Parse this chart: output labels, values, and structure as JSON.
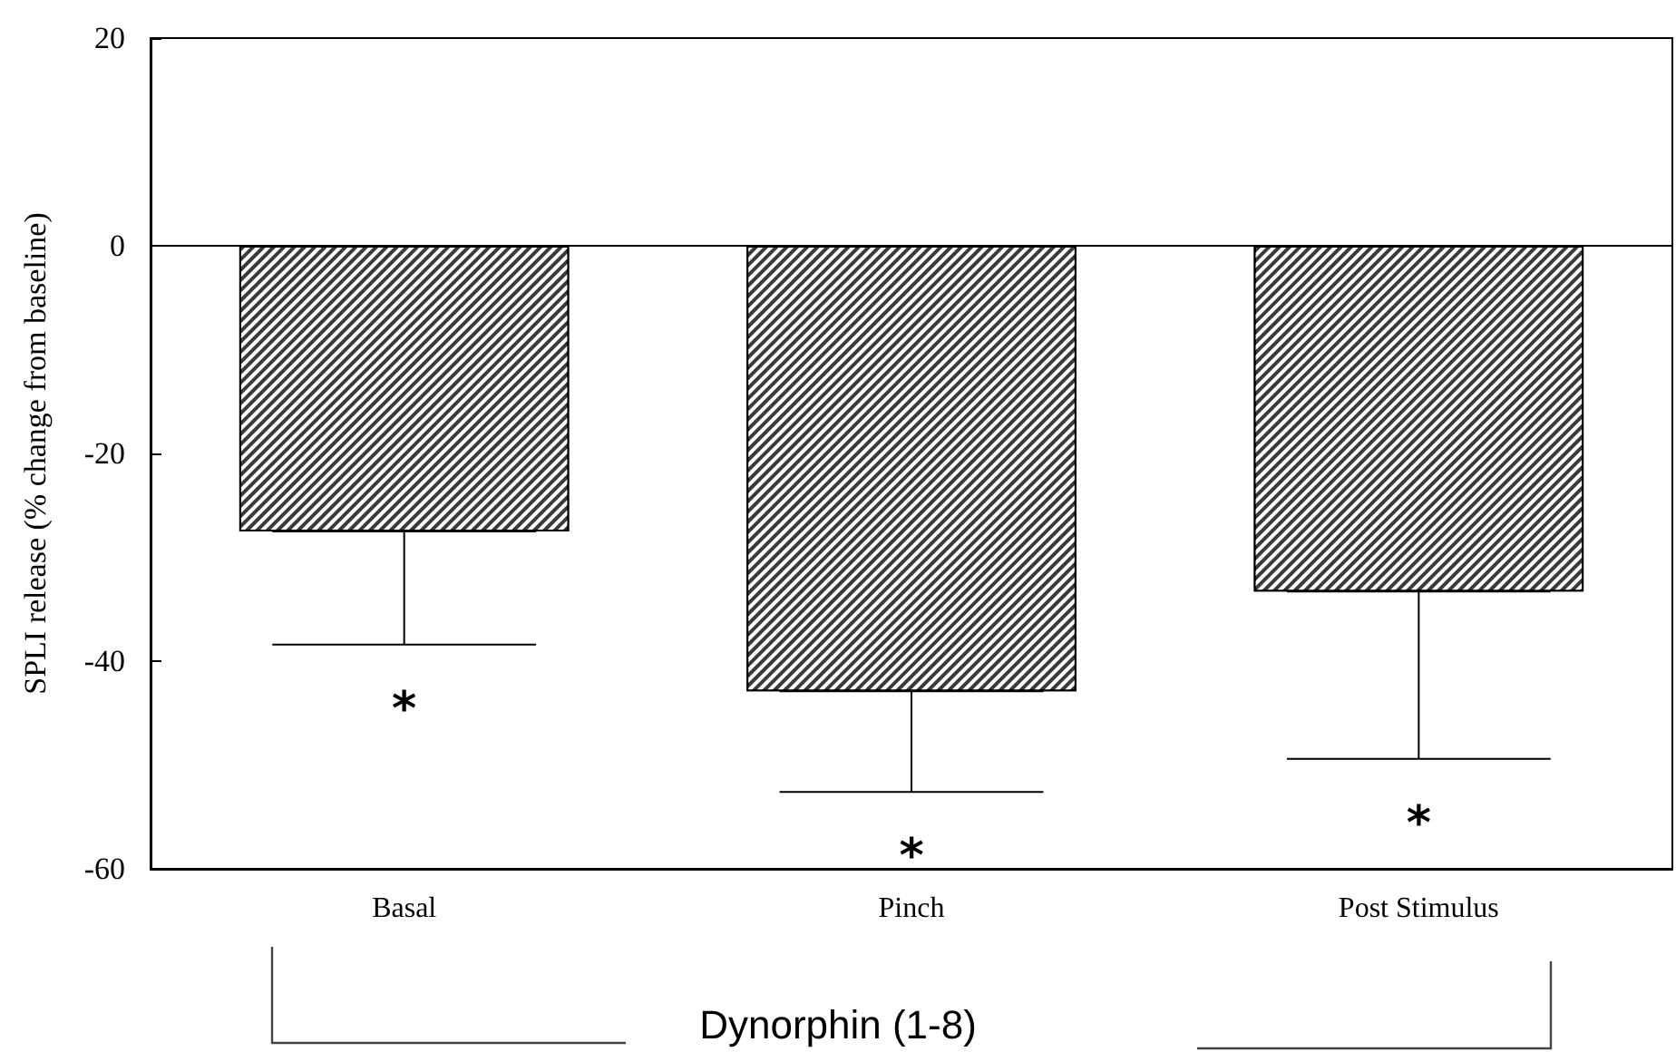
{
  "chart_data": {
    "type": "bar",
    "ylabel": "SPLI release (% change from baseline)",
    "categories": [
      "Basal",
      "Pinch",
      "Post Stimulus"
    ],
    "values": [
      -27.5,
      -42.9,
      -33.3
    ],
    "errors": [
      [
        -38.4,
        -27.5
      ],
      [
        -52.6,
        -42.9
      ],
      [
        -49.4,
        -33.3
      ]
    ],
    "color": "#3a3a3a",
    "ylim": [
      -60,
      20
    ],
    "yticks": [
      20,
      0,
      -20,
      -40,
      -60
    ],
    "grid": false,
    "ref_lines": [
      {
        "axis": "y",
        "value": 0,
        "color": "#000000"
      }
    ],
    "annotations": [
      "*",
      "*",
      "*",
      "Dynorphin (1-8)"
    ]
  }
}
